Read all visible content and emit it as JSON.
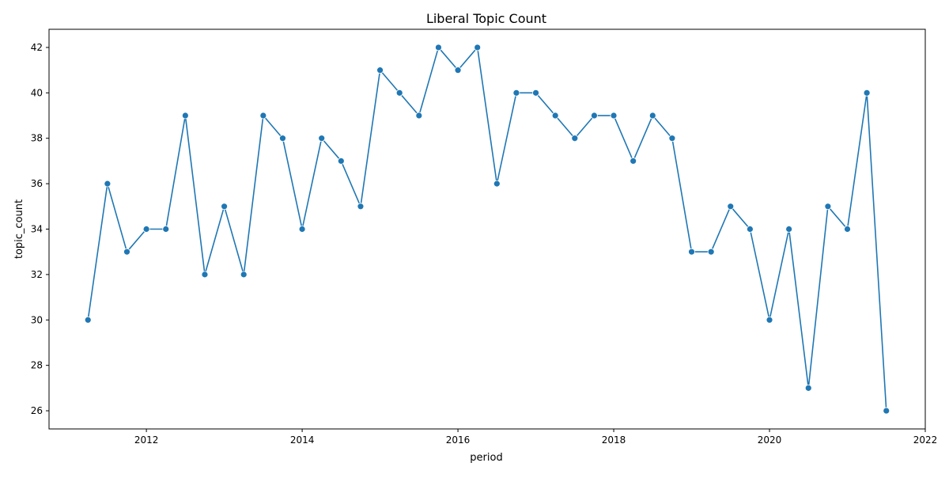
{
  "chart_data": {
    "type": "line",
    "title": "Liberal Topic Count",
    "xlabel": "period",
    "ylabel": "topic_count",
    "xlim": [
      2010.75,
      2022.0
    ],
    "ylim": [
      25.2,
      42.8
    ],
    "xticks": [
      2012,
      2014,
      2016,
      2018,
      2020,
      2022
    ],
    "xtick_labels": [
      "2012",
      "2014",
      "2016",
      "2018",
      "2020",
      "2022"
    ],
    "yticks": [
      26,
      28,
      30,
      32,
      34,
      36,
      38,
      40,
      42
    ],
    "ytick_labels": [
      "26",
      "28",
      "30",
      "32",
      "34",
      "36",
      "38",
      "40",
      "42"
    ],
    "grid": false,
    "series": [
      {
        "name": "topic_count",
        "color": "#1f77b4",
        "marker": "circle",
        "x": [
          2011.25,
          2011.5,
          2011.75,
          2012.0,
          2012.25,
          2012.5,
          2012.75,
          2013.0,
          2013.25,
          2013.5,
          2013.75,
          2014.0,
          2014.25,
          2014.5,
          2014.75,
          2015.0,
          2015.25,
          2015.5,
          2015.75,
          2016.0,
          2016.25,
          2016.5,
          2016.75,
          2017.0,
          2017.25,
          2017.5,
          2017.75,
          2018.0,
          2018.25,
          2018.5,
          2018.75,
          2019.0,
          2019.25,
          2019.5,
          2019.75,
          2020.0,
          2020.25,
          2020.5,
          2020.75,
          2021.0,
          2021.25,
          2021.5
        ],
        "y": [
          30,
          36,
          33,
          34,
          34,
          39,
          32,
          35,
          32,
          39,
          38,
          34,
          38,
          37,
          35,
          41,
          40,
          39,
          42,
          41,
          42,
          36,
          40,
          40,
          39,
          38,
          39,
          39,
          37,
          39,
          38,
          33,
          33,
          35,
          34,
          30,
          34,
          27,
          35,
          34,
          40,
          26
        ]
      }
    ]
  }
}
